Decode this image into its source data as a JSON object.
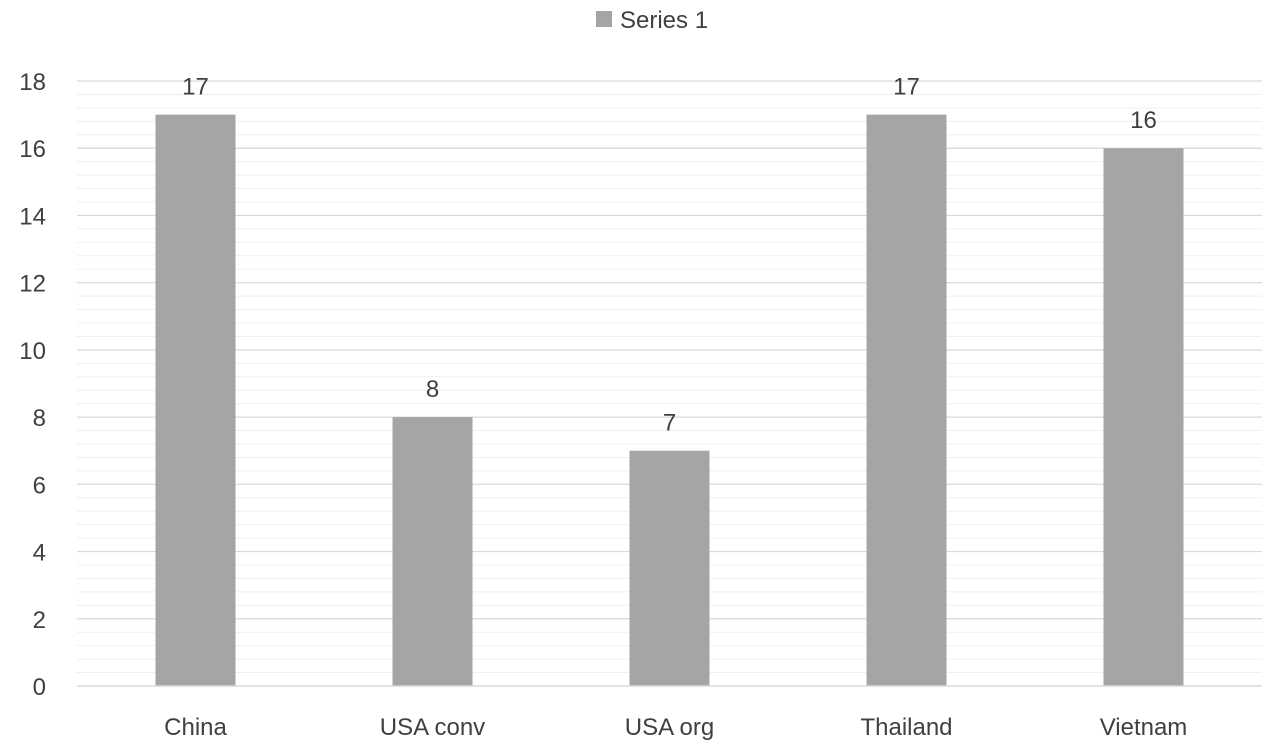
{
  "chart_data": {
    "type": "bar",
    "categories": [
      "China",
      "USA conv",
      "USA org",
      "Thailand",
      "Vietnam"
    ],
    "series": [
      {
        "name": "Series 1",
        "values": [
          17,
          8,
          7,
          17,
          16
        ]
      }
    ],
    "title": "",
    "xlabel": "",
    "ylabel": "",
    "ylim": [
      0,
      18
    ],
    "yticks": [
      0,
      2,
      4,
      6,
      8,
      10,
      12,
      14,
      16,
      18
    ],
    "ytick_labels": [
      "0",
      "2",
      "4",
      "6",
      "8",
      "10",
      "12",
      "14",
      "16",
      "18"
    ],
    "data_labels": [
      "17",
      "8",
      "7",
      "17",
      "16"
    ],
    "grid": true,
    "minor_grid": true,
    "legend": {
      "position": "top",
      "entries": [
        "Series 1"
      ]
    },
    "colors": {
      "bar": "#a5a5a5",
      "grid_major": "#d9d9d9",
      "grid_minor": "#efefef",
      "text": "#404040"
    }
  }
}
